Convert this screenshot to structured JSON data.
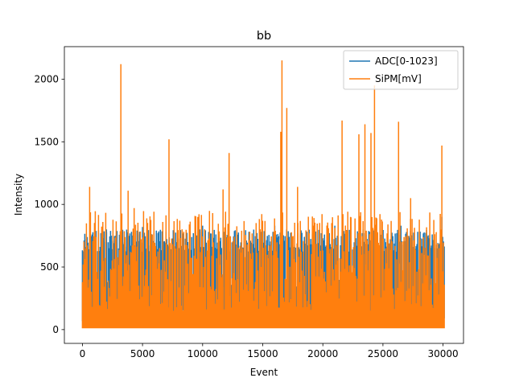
{
  "chart_data": {
    "type": "line",
    "title": "bb",
    "xlabel": "Event",
    "ylabel": "Intensity",
    "xlim": [
      -1500,
      31700
    ],
    "ylim": [
      -110,
      2260
    ],
    "x_ticks": [
      0,
      5000,
      10000,
      15000,
      20000,
      25000,
      30000
    ],
    "y_ticks": [
      0,
      500,
      1000,
      1500,
      2000
    ],
    "n_points": 30100,
    "legend_position": "top-right",
    "series": [
      {
        "name": "ADC[0-1023]",
        "color": "#1f77b4",
        "baseline": 100,
        "typical_peak": 700,
        "max": 900,
        "notable_peaks": [
          {
            "x": 300,
            "y": 650
          },
          {
            "x": 2000,
            "y": 800
          },
          {
            "x": 5000,
            "y": 820
          },
          {
            "x": 10000,
            "y": 830
          },
          {
            "x": 16000,
            "y": 830
          },
          {
            "x": 21000,
            "y": 830
          },
          {
            "x": 26500,
            "y": 830
          },
          {
            "x": 29900,
            "y": 900
          }
        ]
      },
      {
        "name": "SiPM[mV]",
        "color": "#ff7f0e",
        "baseline": 10,
        "typical_peak": 600,
        "notable_peaks": [
          {
            "x": 600,
            "y": 1140
          },
          {
            "x": 1700,
            "y": 860
          },
          {
            "x": 3200,
            "y": 2120
          },
          {
            "x": 3800,
            "y": 1110
          },
          {
            "x": 4300,
            "y": 970
          },
          {
            "x": 7200,
            "y": 1520
          },
          {
            "x": 8100,
            "y": 870
          },
          {
            "x": 9600,
            "y": 900
          },
          {
            "x": 11700,
            "y": 1120
          },
          {
            "x": 12200,
            "y": 1410
          },
          {
            "x": 16500,
            "y": 1580
          },
          {
            "x": 16600,
            "y": 2150
          },
          {
            "x": 17000,
            "y": 1770
          },
          {
            "x": 17900,
            "y": 1140
          },
          {
            "x": 21600,
            "y": 1670
          },
          {
            "x": 22300,
            "y": 900
          },
          {
            "x": 23000,
            "y": 1560
          },
          {
            "x": 23500,
            "y": 1640
          },
          {
            "x": 24000,
            "y": 1570
          },
          {
            "x": 24300,
            "y": 1950
          },
          {
            "x": 26300,
            "y": 1660
          },
          {
            "x": 27300,
            "y": 1050
          },
          {
            "x": 29900,
            "y": 1470
          }
        ]
      }
    ]
  }
}
